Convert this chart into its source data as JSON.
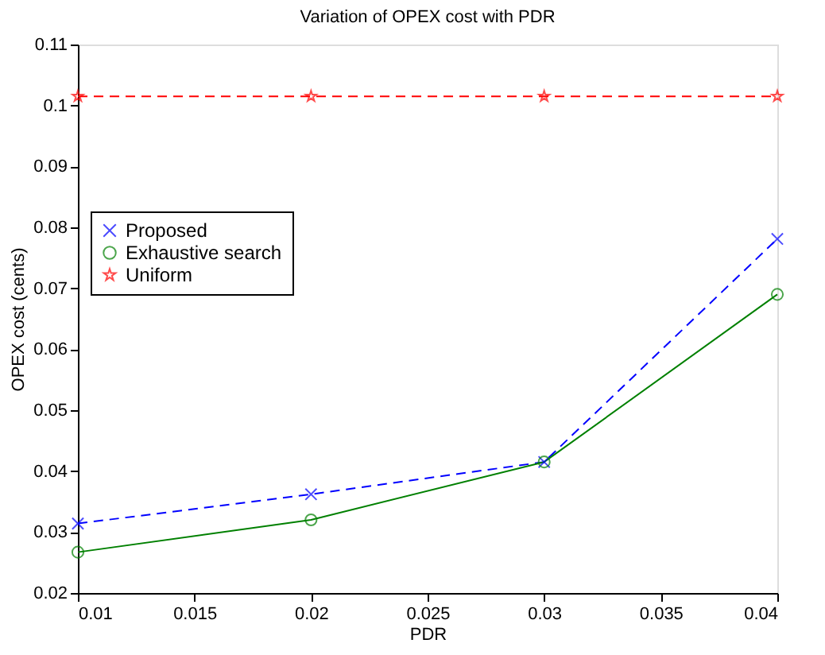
{
  "chart_data": {
    "type": "line",
    "title": "Variation of OPEX cost with PDR",
    "xlabel": "PDR",
    "ylabel": "OPEX cost (cents)",
    "x": [
      0.01,
      0.02,
      0.03,
      0.04
    ],
    "series": [
      {
        "name": "Proposed",
        "color": "#0000ff",
        "marker": "cross",
        "line_style": "dashed",
        "values": [
          0.0314,
          0.0362,
          0.0415,
          0.0781
        ]
      },
      {
        "name": "Exhaustive search",
        "color": "#008000",
        "marker": "circle",
        "line_style": "solid",
        "values": [
          0.0267,
          0.032,
          0.0415,
          0.069
        ]
      },
      {
        "name": "Uniform",
        "color": "#ff0000",
        "marker": "star",
        "line_style": "dashed",
        "values": [
          0.1015,
          0.1015,
          0.1015,
          0.1015
        ]
      }
    ],
    "xlim": [
      0.01,
      0.04
    ],
    "xticks": [
      0.01,
      0.015,
      0.02,
      0.025,
      0.03,
      0.035,
      0.04
    ],
    "ylim": [
      0.02,
      0.11
    ],
    "yticks": [
      0.02,
      0.03,
      0.04,
      0.05,
      0.06,
      0.07,
      0.08,
      0.09,
      0.1,
      0.11
    ],
    "grid": false,
    "legend": "left"
  }
}
